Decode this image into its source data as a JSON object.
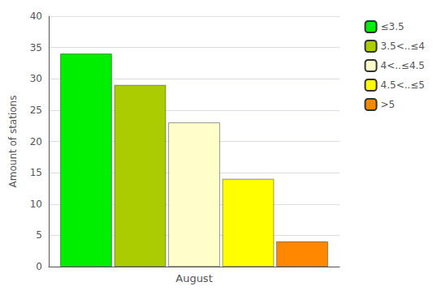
{
  "chart_data": {
    "type": "bar",
    "categories": [
      "August"
    ],
    "series": [
      {
        "name": "≤3.5",
        "color": "#00EE00",
        "values": [
          34
        ]
      },
      {
        "name": "3.5<..≤4",
        "color": "#AACC00",
        "values": [
          29
        ]
      },
      {
        "name": "4<..≤4.5",
        "color": "#FFFFCC",
        "values": [
          23
        ]
      },
      {
        "name": "4.5<..≤5",
        "color": "#FFFF00",
        "values": [
          14
        ]
      },
      {
        "name": ">5",
        "color": "#FF8800",
        "values": [
          4
        ]
      }
    ],
    "ylabel": "Amount of stations",
    "ylim": [
      0,
      40
    ],
    "yticks": [
      0,
      5,
      10,
      15,
      20,
      25,
      30,
      35,
      40
    ],
    "grid": true,
    "legend": "upper right"
  }
}
